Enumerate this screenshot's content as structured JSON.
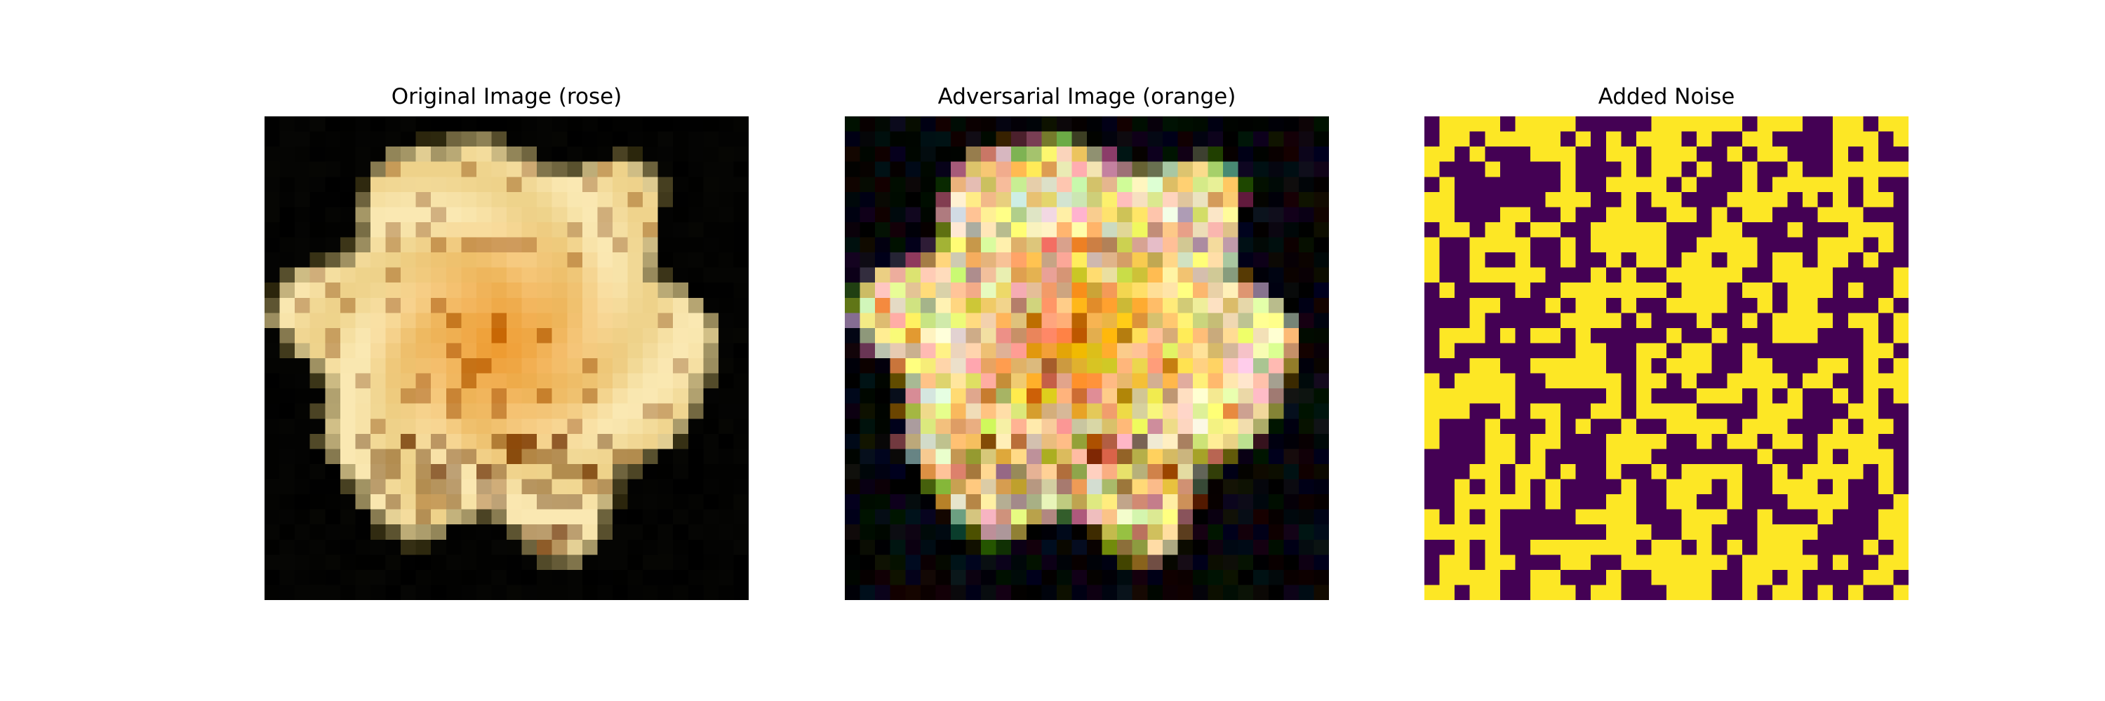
{
  "figure": {
    "panels": [
      {
        "title": "Original Image (rose)",
        "image": "pixelated-cream-yellow-rose-on-black",
        "grid": 32
      },
      {
        "title": "Adversarial Image (orange)",
        "image": "pixelated-rose-with-colored-adversarial-noise",
        "grid": 32
      },
      {
        "title": "Added Noise",
        "image": "binary-noise-pattern-viridis",
        "grid": 32
      }
    ],
    "noise_colors": {
      "low": "#440154",
      "high": "#fde725"
    }
  }
}
